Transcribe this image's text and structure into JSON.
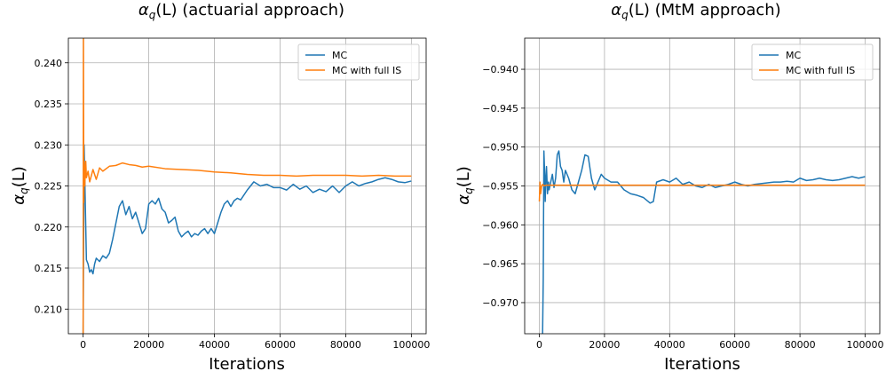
{
  "chart_data": [
    {
      "type": "line",
      "title_main": "α",
      "title_sub": "q",
      "title_rest": "(L) (actuarial approach)",
      "xlabel": "Iterations",
      "ylabel_main": "α",
      "ylabel_sub": "q",
      "ylabel_rest": "(L)",
      "xlim": [
        -4500,
        104500
      ],
      "ylim": [
        0.207,
        0.243
      ],
      "xticks": [
        0,
        20000,
        40000,
        60000,
        80000,
        100000
      ],
      "xtick_labels": [
        "0",
        "20000",
        "40000",
        "60000",
        "80000",
        "100000"
      ],
      "yticks": [
        0.21,
        0.215,
        0.22,
        0.225,
        0.23,
        0.235,
        0.24
      ],
      "ytick_labels": [
        "0.210",
        "0.215",
        "0.220",
        "0.225",
        "0.230",
        "0.235",
        "0.240"
      ],
      "grid": true,
      "legend_position": "top-right",
      "series": [
        {
          "name": "MC",
          "color": "#1f77b4",
          "x": [
            0,
            300,
            700,
            1000,
            1500,
            2000,
            2500,
            3000,
            3500,
            4000,
            5000,
            6000,
            7000,
            8000,
            9000,
            10000,
            11000,
            12000,
            13000,
            14000,
            15000,
            16000,
            17000,
            18000,
            19000,
            20000,
            21000,
            22000,
            23000,
            24000,
            25000,
            26000,
            27000,
            28000,
            29000,
            30000,
            31000,
            32000,
            33000,
            34000,
            35000,
            36000,
            37000,
            38000,
            39000,
            40000,
            41000,
            42000,
            43000,
            44000,
            45000,
            46000,
            47000,
            48000,
            50000,
            52000,
            54000,
            56000,
            58000,
            60000,
            62000,
            64000,
            66000,
            68000,
            70000,
            72000,
            74000,
            76000,
            78000,
            80000,
            82000,
            84000,
            86000,
            88000,
            90000,
            92000,
            94000,
            96000,
            98000,
            100000
          ],
          "y": [
            0.207,
            0.23,
            0.222,
            0.216,
            0.2155,
            0.2145,
            0.2148,
            0.2143,
            0.2155,
            0.2162,
            0.2158,
            0.2165,
            0.2162,
            0.2168,
            0.2185,
            0.2205,
            0.2225,
            0.2232,
            0.2215,
            0.2225,
            0.221,
            0.2218,
            0.2205,
            0.2192,
            0.2198,
            0.2228,
            0.2232,
            0.2228,
            0.2235,
            0.2222,
            0.2218,
            0.2205,
            0.2208,
            0.2212,
            0.2195,
            0.2188,
            0.2192,
            0.2195,
            0.2188,
            0.2192,
            0.219,
            0.2195,
            0.2198,
            0.2192,
            0.2198,
            0.2192,
            0.2205,
            0.2218,
            0.2228,
            0.2232,
            0.2225,
            0.2232,
            0.2235,
            0.2233,
            0.2245,
            0.2255,
            0.225,
            0.2252,
            0.2248,
            0.2248,
            0.2245,
            0.2252,
            0.2246,
            0.225,
            0.2242,
            0.2246,
            0.2243,
            0.225,
            0.2242,
            0.225,
            0.2255,
            0.225,
            0.2253,
            0.2255,
            0.2258,
            0.226,
            0.2258,
            0.2255,
            0.2254,
            0.2256
          ]
        },
        {
          "name": "MC with full IS",
          "color": "#ff7f0e",
          "x": [
            0,
            100,
            200,
            300,
            500,
            800,
            1000,
            1500,
            2000,
            3000,
            4000,
            5000,
            6000,
            8000,
            10000,
            12000,
            14000,
            16000,
            18000,
            20000,
            25000,
            30000,
            35000,
            40000,
            45000,
            50000,
            55000,
            60000,
            65000,
            70000,
            75000,
            80000,
            85000,
            90000,
            95000,
            100000
          ],
          "y": [
            0.207,
            0.243,
            0.223,
            0.228,
            0.225,
            0.228,
            0.226,
            0.2268,
            0.2255,
            0.227,
            0.2258,
            0.2272,
            0.2268,
            0.2274,
            0.2275,
            0.2278,
            0.2276,
            0.2275,
            0.2273,
            0.2274,
            0.2271,
            0.227,
            0.2269,
            0.2267,
            0.2266,
            0.2264,
            0.2263,
            0.2263,
            0.2262,
            0.2263,
            0.2263,
            0.2263,
            0.2262,
            0.2263,
            0.2262,
            0.2262
          ]
        }
      ]
    },
    {
      "type": "line",
      "title_main": "α",
      "title_sub": "q",
      "title_rest": "(L) (MtM approach)",
      "xlabel": "Iterations",
      "ylabel_main": "α",
      "ylabel_sub": "q",
      "ylabel_rest": "(L)",
      "xlim": [
        -4500,
        104500
      ],
      "ylim": [
        -0.974,
        -0.936
      ],
      "xticks": [
        0,
        20000,
        40000,
        60000,
        80000,
        100000
      ],
      "xtick_labels": [
        "0",
        "20000",
        "40000",
        "60000",
        "80000",
        "100000"
      ],
      "yticks": [
        -0.97,
        -0.965,
        -0.96,
        -0.955,
        -0.95,
        -0.945,
        -0.94
      ],
      "ytick_labels": [
        "−0.970",
        "−0.965",
        "−0.960",
        "−0.955",
        "−0.950",
        "−0.945",
        "−0.940"
      ],
      "grid": true,
      "legend_position": "top-right",
      "series": [
        {
          "name": "MC",
          "color": "#1f77b4",
          "x": [
            1000,
            1200,
            1400,
            1600,
            1800,
            2000,
            2200,
            2500,
            2800,
            3000,
            3500,
            4000,
            4500,
            5000,
            5500,
            6000,
            6500,
            7000,
            7500,
            8000,
            9000,
            10000,
            11000,
            12000,
            13000,
            14000,
            15000,
            16000,
            17000,
            18000,
            19000,
            20000,
            22000,
            24000,
            26000,
            28000,
            30000,
            32000,
            34000,
            35000,
            36000,
            38000,
            40000,
            42000,
            44000,
            46000,
            48000,
            50000,
            52000,
            54000,
            56000,
            58000,
            60000,
            62000,
            64000,
            66000,
            68000,
            70000,
            72000,
            74000,
            76000,
            78000,
            80000,
            82000,
            84000,
            86000,
            88000,
            90000,
            92000,
            94000,
            96000,
            98000,
            100000
          ],
          "y": [
            -0.974,
            -0.967,
            -0.9505,
            -0.953,
            -0.957,
            -0.954,
            -0.9525,
            -0.956,
            -0.9545,
            -0.9555,
            -0.9545,
            -0.9535,
            -0.9552,
            -0.954,
            -0.951,
            -0.9505,
            -0.9525,
            -0.953,
            -0.9545,
            -0.953,
            -0.954,
            -0.9555,
            -0.956,
            -0.9545,
            -0.953,
            -0.951,
            -0.9512,
            -0.954,
            -0.9555,
            -0.9545,
            -0.9535,
            -0.954,
            -0.9545,
            -0.9545,
            -0.9555,
            -0.956,
            -0.9562,
            -0.9565,
            -0.9572,
            -0.957,
            -0.9545,
            -0.9542,
            -0.9545,
            -0.954,
            -0.9548,
            -0.9545,
            -0.955,
            -0.9552,
            -0.9548,
            -0.9552,
            -0.955,
            -0.9548,
            -0.9545,
            -0.9548,
            -0.955,
            -0.9548,
            -0.9547,
            -0.9546,
            -0.9545,
            -0.9545,
            -0.9544,
            -0.9545,
            -0.954,
            -0.9543,
            -0.9542,
            -0.954,
            -0.9542,
            -0.9543,
            -0.9542,
            -0.954,
            -0.9538,
            -0.954,
            -0.9538
          ]
        },
        {
          "name": "MC with full IS",
          "color": "#ff7f0e",
          "x": [
            0,
            200,
            400,
            700,
            1000,
            1500,
            2000,
            3000,
            5000,
            10000,
            20000,
            30000,
            40000,
            50000,
            60000,
            70000,
            80000,
            90000,
            100000
          ],
          "y": [
            -0.957,
            -0.9545,
            -0.956,
            -0.955,
            -0.9548,
            -0.955,
            -0.9549,
            -0.9549,
            -0.9549,
            -0.9549,
            -0.9549,
            -0.9549,
            -0.9549,
            -0.9549,
            -0.9549,
            -0.9549,
            -0.9549,
            -0.9549,
            -0.9549
          ]
        }
      ]
    }
  ]
}
